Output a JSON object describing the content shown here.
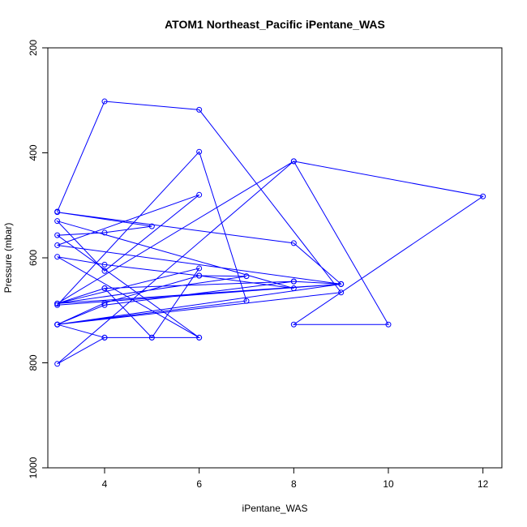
{
  "chart_data": {
    "type": "line",
    "title": "ATOM1 Northeast_Pacific iPentane_WAS",
    "xlabel": "iPentane_WAS",
    "ylabel": "Pressure (mbar)",
    "xlim": [
      2.8,
      12.4
    ],
    "ylim": [
      1000,
      200
    ],
    "y_reversed": true,
    "x_ticks": [
      4,
      6,
      8,
      10,
      12
    ],
    "y_ticks": [
      200,
      400,
      600,
      800,
      1000
    ],
    "grid": false,
    "legend": "none",
    "color": "#0000ff",
    "series": [
      {
        "x": [
          3,
          4,
          6,
          9,
          3,
          4,
          5,
          6,
          3,
          4,
          5,
          3,
          8,
          9,
          3,
          4,
          6,
          7,
          3,
          4,
          5,
          6,
          3,
          8,
          12,
          8,
          10,
          8,
          3,
          4,
          6,
          3,
          4,
          6,
          8,
          3,
          4,
          6,
          3,
          9,
          3,
          4,
          8,
          9,
          3,
          6,
          7,
          3,
          4,
          8
        ],
        "y": [
          512,
          302,
          318,
          666,
          727,
          752,
          752,
          752,
          557,
          552,
          540,
          513,
          572,
          650,
          727,
          686,
          634,
          635,
          687,
          658,
          752,
          620,
          687,
          416,
          483,
          727,
          727,
          416,
          802,
          752,
          752,
          598,
          613,
          634,
          658,
          530,
          625,
          480,
          576,
          650,
          687,
          658,
          645,
          650,
          690,
          398,
          682,
          727,
          690,
          645
        ]
      }
    ]
  }
}
